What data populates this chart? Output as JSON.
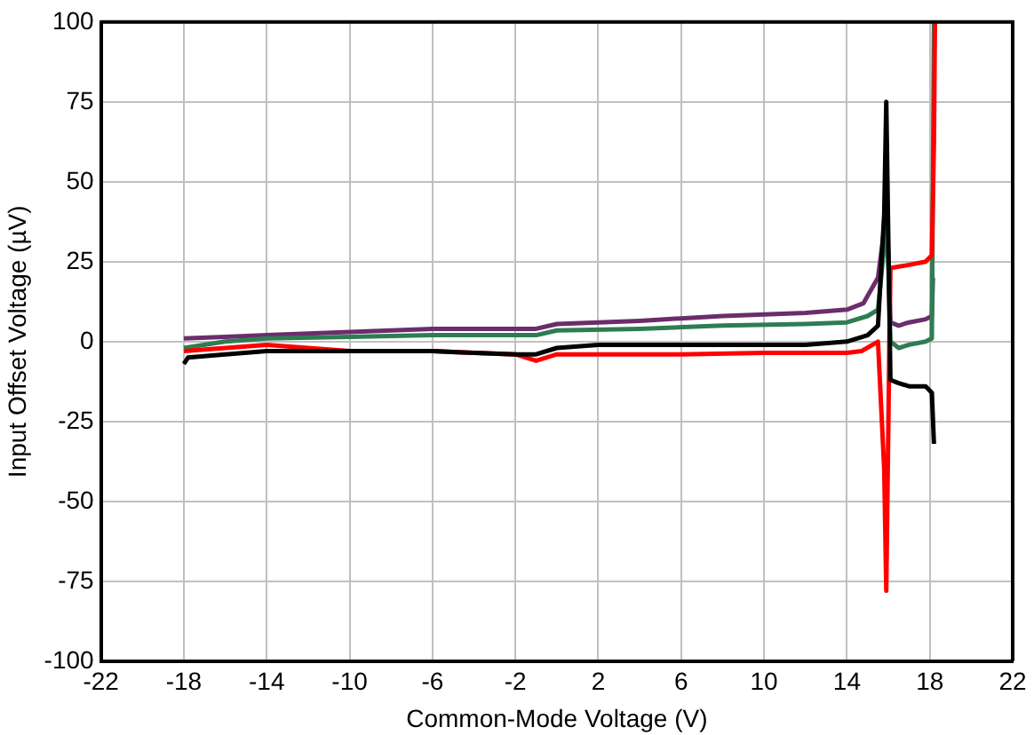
{
  "chart_data": {
    "type": "line",
    "xlabel": "Common-Mode Voltage (V)",
    "ylabel": "Input Offset Voltage (µV)",
    "xlim": [
      -22,
      22
    ],
    "xticks": [
      -22,
      -18,
      -14,
      -10,
      -6,
      -2,
      2,
      6,
      10,
      14,
      18,
      22
    ],
    "ylim": [
      -100,
      100
    ],
    "yticks": [
      -100,
      -75,
      -50,
      -25,
      0,
      25,
      50,
      75,
      100
    ],
    "grid": true,
    "legend": false,
    "marker": "none",
    "line_style": "solid",
    "series": [
      {
        "color": "#000000",
        "x": [
          -18,
          -17.8,
          -16,
          -14,
          -10,
          -6,
          -2,
          -1,
          0,
          2,
          6,
          10,
          12,
          14,
          15,
          15.5,
          15.8,
          15.9,
          16.1,
          16.5,
          17,
          17.8,
          18.1,
          18.2
        ],
        "values": [
          -7,
          -5,
          -4,
          -3,
          -3,
          -3,
          -4,
          -4,
          -2,
          -1,
          -1,
          -1,
          -1,
          0,
          2,
          5,
          40,
          75,
          -12,
          -13,
          -14,
          -14,
          -16,
          -32
        ]
      },
      {
        "color": "#ff0000",
        "x": [
          -18,
          -16,
          -14,
          -10,
          -6,
          -2,
          -1,
          0,
          2,
          6,
          10,
          14,
          14.7,
          15.5,
          15.8,
          15.9,
          16.05,
          16.1,
          17,
          17.8,
          18.1,
          18.2,
          18.25
        ],
        "values": [
          -3,
          -2,
          -1,
          -3,
          -3,
          -4,
          -6,
          -4,
          -4,
          -4,
          -3.5,
          -3.5,
          -3,
          0,
          -40,
          -78,
          0,
          23,
          24,
          25,
          27,
          62,
          100
        ]
      },
      {
        "color": "#2e7d52",
        "x": [
          -18,
          -16,
          -14,
          -10,
          -6,
          -2,
          -1,
          0,
          4,
          8,
          12,
          14,
          15,
          15.5,
          15.8,
          15.9,
          16.1,
          16.5,
          17,
          17.8,
          18.1,
          18.2
        ],
        "values": [
          -2,
          0,
          1,
          1.5,
          2,
          2,
          2,
          3.5,
          4,
          5,
          5.5,
          6,
          8,
          10,
          30,
          48,
          0,
          -2,
          -1,
          0,
          1,
          100
        ]
      },
      {
        "color": "#6b2d6b",
        "x": [
          -18,
          -16,
          -14,
          -10,
          -6,
          -2,
          -1,
          0,
          4,
          8,
          12,
          14,
          14.8,
          15.5,
          15.8,
          15.9,
          16.1,
          16.5,
          17,
          17.8,
          18.1,
          18.15
        ],
        "values": [
          1,
          1.5,
          2,
          3,
          4,
          4,
          4,
          5.5,
          6.5,
          8,
          9,
          10,
          12,
          20,
          35,
          45,
          6,
          5,
          6,
          7,
          8,
          20
        ]
      }
    ]
  }
}
